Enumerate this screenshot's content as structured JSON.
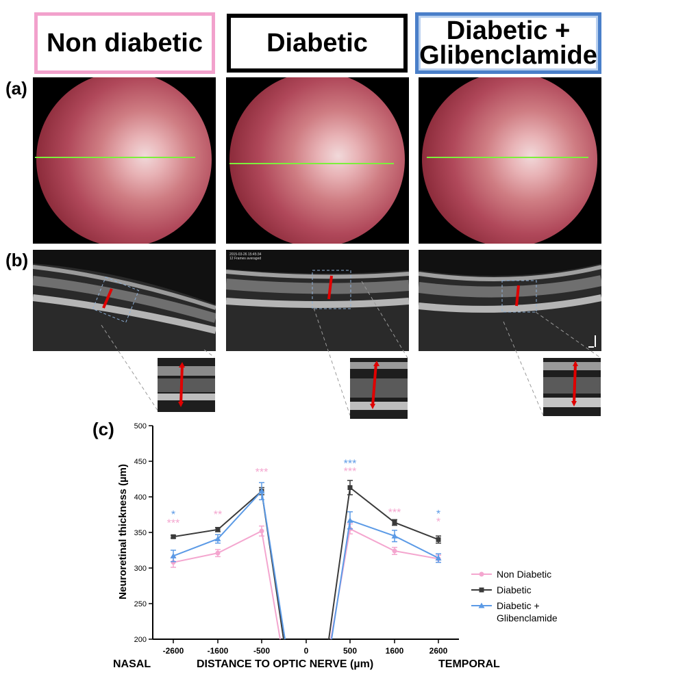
{
  "headers": [
    {
      "text": "Non diabetic",
      "color": "#f2a1cc"
    },
    {
      "text": "Diabetic",
      "color": "#000000"
    },
    {
      "text": "Diabetic + Glibenclamide",
      "line1": "Diabetic +",
      "line2": "Glibenclamide",
      "color": "#4a7fc9"
    }
  ],
  "panel_labels": {
    "a": "(a)",
    "b": "(b)",
    "c": "(c)"
  },
  "oct_overlays": {
    "timestamp": "2015-03-26 15:45:34",
    "frames": "12 Frames averaged"
  },
  "colors": {
    "non_diabetic": "#f4a6cf",
    "diabetic": "#3a3a3a",
    "glibenclamide": "#5b9ae6",
    "arrow": "#e00000",
    "fundus_line": "#7cf03c",
    "dashed_box": "#8fb2d9"
  },
  "chart_data": {
    "type": "line",
    "ylabel": "Neuroretinal thickness (µm)",
    "xlabel": "DISTANCE TO OPTIC NERVE (µm)",
    "xlabel_main": "DISTANCE TO OPTIC NERVE",
    "xlabel_unit": "(µm)",
    "left_label": "NASAL",
    "right_label": "TEMPORAL",
    "ylim": [
      200,
      500
    ],
    "yticks": [
      200,
      250,
      300,
      350,
      400,
      450,
      500
    ],
    "xticks": [
      "-2600",
      "-1600",
      "-500",
      "0",
      "500",
      "1600",
      "2600"
    ],
    "x": [
      -2600,
      -1600,
      -500,
      500,
      1600,
      2600
    ],
    "series": [
      {
        "name": "Non Diabetic",
        "marker": "circle",
        "color": "#f4a6cf",
        "values": [
          308,
          321,
          352,
          355,
          324,
          313
        ],
        "errors": [
          7,
          5,
          7,
          7,
          5,
          5
        ]
      },
      {
        "name": "Diabetic",
        "marker": "square",
        "color": "#3a3a3a",
        "values": [
          344,
          354,
          408,
          413,
          364,
          340
        ],
        "errors": [
          2,
          3,
          5,
          10,
          4,
          5
        ]
      },
      {
        "name": "Diabetic + Glibenclamide",
        "legend_line1": "Diabetic +",
        "legend_line2": "Glibenclamide",
        "marker": "triangle",
        "color": "#5b9ae6",
        "values": [
          317,
          341,
          408,
          367,
          345,
          314
        ],
        "errors": [
          8,
          6,
          12,
          12,
          8,
          6
        ]
      }
    ],
    "significance": [
      {
        "x": -2600,
        "y": 370,
        "text": "*",
        "color": "#5b9ae6"
      },
      {
        "x": -2600,
        "y": 358,
        "text": "***",
        "color": "#f4a6cf"
      },
      {
        "x": -1600,
        "y": 370,
        "text": "**",
        "color": "#f4a6cf"
      },
      {
        "x": -500,
        "y": 430,
        "text": "***",
        "color": "#f4a6cf"
      },
      {
        "x": 500,
        "y": 442,
        "text": "***",
        "color": "#5b9ae6"
      },
      {
        "x": 500,
        "y": 431,
        "text": "***",
        "color": "#f4a6cf"
      },
      {
        "x": 1600,
        "y": 373,
        "text": "***",
        "color": "#f4a6cf"
      },
      {
        "x": 2600,
        "y": 371,
        "text": "*",
        "color": "#5b9ae6"
      },
      {
        "x": 2600,
        "y": 360,
        "text": "*",
        "color": "#f4a6cf"
      }
    ],
    "legend_position": "right"
  }
}
